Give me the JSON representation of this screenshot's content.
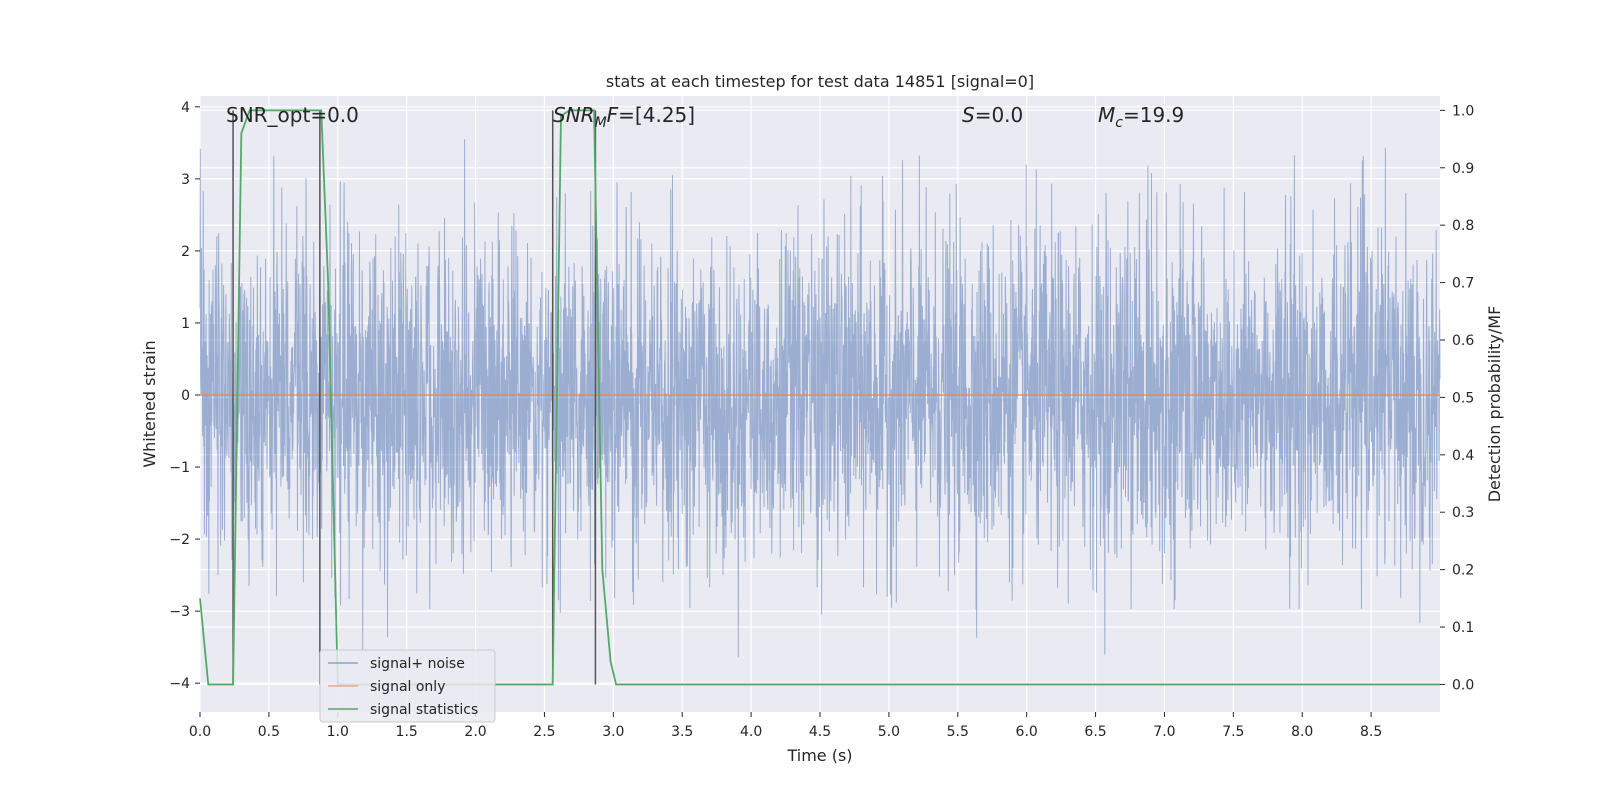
{
  "chart_data": {
    "type": "line",
    "title": "stats at each timestep for test data 14851 [signal=0]",
    "xlabel": "Time (s)",
    "ylabel": "Whitened strain",
    "y2label": "Detection probability/MF",
    "xlim": [
      0.0,
      9.0
    ],
    "ylim": [
      -4.4,
      4.15
    ],
    "y2lim": [
      -0.048,
      1.025
    ],
    "xticks": [
      "0.0",
      "0.5",
      "1.0",
      "1.5",
      "2.0",
      "2.5",
      "3.0",
      "3.5",
      "4.0",
      "4.5",
      "5.0",
      "5.5",
      "6.0",
      "6.5",
      "7.0",
      "7.5",
      "8.0",
      "8.5"
    ],
    "yticks": [
      "4",
      "3",
      "2",
      "1",
      "0",
      "−1",
      "−2",
      "−3",
      "−4"
    ],
    "y2ticks": [
      "1.0",
      "0.9",
      "0.8",
      "0.7",
      "0.6",
      "0.5",
      "0.4",
      "0.3",
      "0.2",
      "0.1",
      "0.0"
    ],
    "grid": true,
    "legend_position": "lower-left",
    "series": [
      {
        "name": "signal+ noise",
        "axis": "left",
        "color": "#4c72b0",
        "description": "whitened noise, approx. Gaussian, values roughly between -3.65 and 3.6"
      },
      {
        "name": "signal only",
        "axis": "left",
        "color": "#dd8452",
        "x": [
          0.0,
          9.0
        ],
        "y": [
          0.0,
          0.0
        ]
      },
      {
        "name": "signal statistics",
        "axis": "right",
        "color": "#55a868",
        "x": [
          0.0,
          0.06,
          0.12,
          0.18,
          0.24,
          0.3,
          0.36,
          0.42,
          0.48,
          0.54,
          0.6,
          0.66,
          0.72,
          0.78,
          0.84,
          0.88,
          0.93,
          1.0,
          1.5,
          2.0,
          2.5,
          2.56,
          2.62,
          2.68,
          2.74,
          2.8,
          2.86,
          2.92,
          2.98,
          3.02,
          3.5,
          4.0,
          5.0,
          6.0,
          7.0,
          8.0,
          9.0
        ],
        "y": [
          0.15,
          0.0,
          0.0,
          0.0,
          0.0,
          0.96,
          1.0,
          1.0,
          1.0,
          1.0,
          1.0,
          1.0,
          1.0,
          1.0,
          1.0,
          1.0,
          0.7,
          0.0,
          0.0,
          0.0,
          0.0,
          0.0,
          0.99,
          1.0,
          1.0,
          1.0,
          1.0,
          0.2,
          0.04,
          0.0,
          0.0,
          0.0,
          0.0,
          0.0,
          0.0,
          0.0,
          0.0
        ]
      }
    ],
    "vertical_markers": [
      0.24,
      0.87,
      2.56,
      2.87
    ],
    "marker_color": "#555555",
    "annotations": [
      {
        "parts": [
          {
            "text": "SNR_opt=0.0",
            "italic": false
          }
        ]
      },
      {
        "parts": [
          {
            "text": "SNR",
            "italic": true
          },
          {
            "text": "M",
            "italic": true,
            "sub": true
          },
          {
            "text": "F",
            "italic": true
          },
          {
            "text": "=[4.25]",
            "italic": false
          }
        ]
      },
      {
        "parts": [
          {
            "text": "S",
            "italic": true
          },
          {
            "text": "=0.0",
            "italic": false
          }
        ]
      },
      {
        "parts": [
          {
            "text": "M",
            "italic": true
          },
          {
            "text": "c",
            "italic": true,
            "sub": true
          },
          {
            "text": "=19.9",
            "italic": false
          }
        ]
      }
    ]
  }
}
